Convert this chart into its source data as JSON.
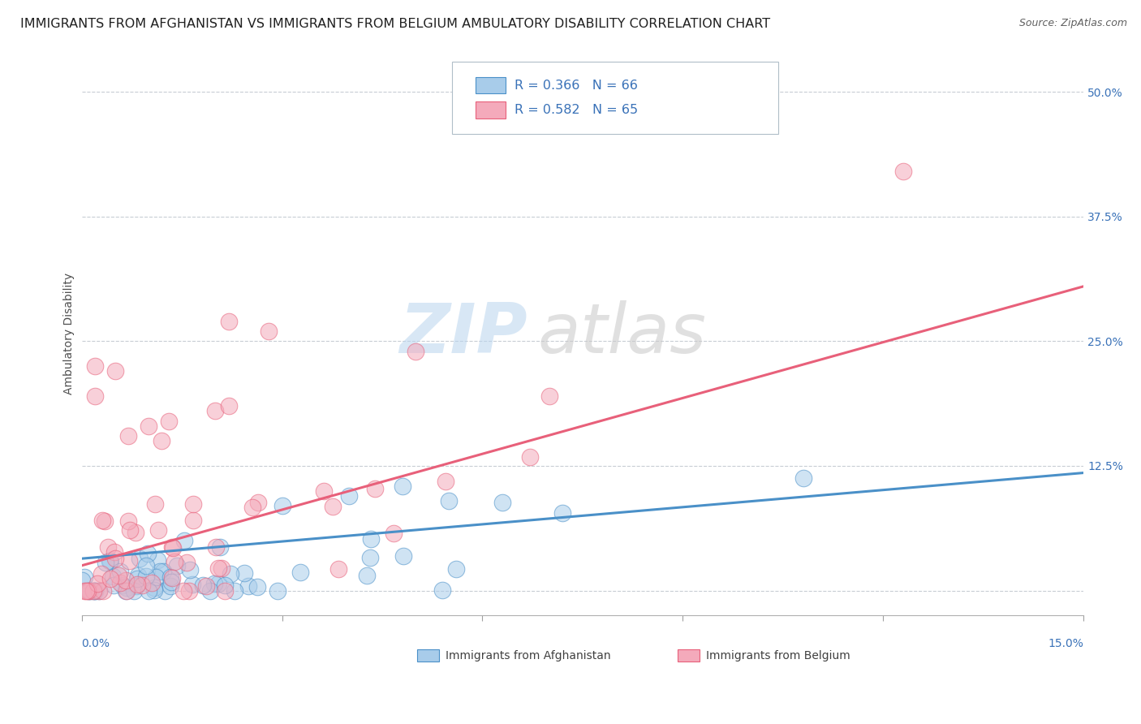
{
  "title": "IMMIGRANTS FROM AFGHANISTAN VS IMMIGRANTS FROM BELGIUM AMBULATORY DISABILITY CORRELATION CHART",
  "source": "Source: ZipAtlas.com",
  "ylabel": "Ambulatory Disability",
  "xlim": [
    0.0,
    0.15
  ],
  "ylim": [
    -0.025,
    0.54
  ],
  "yticks": [
    0.0,
    0.125,
    0.25,
    0.375,
    0.5
  ],
  "ytick_labels": [
    "",
    "12.5%",
    "25.0%",
    "37.5%",
    "50.0%"
  ],
  "xticks": [
    0.0,
    0.03,
    0.06,
    0.09,
    0.12,
    0.15
  ],
  "afghanistan_R": 0.366,
  "afghanistan_N": 66,
  "belgium_R": 0.582,
  "belgium_N": 65,
  "afghanistan_color": "#A8CCEA",
  "belgium_color": "#F4AABB",
  "afghanistan_line_color": "#4A90C8",
  "belgium_line_color": "#E8607A",
  "background_color": "#FFFFFF",
  "watermark_zip": "ZIP",
  "watermark_atlas": "atlas",
  "legend_label_1": "Immigrants from Afghanistan",
  "legend_label_2": "Immigrants from Belgium",
  "title_fontsize": 11.5,
  "source_fontsize": 9,
  "axis_label_fontsize": 10,
  "tick_fontsize": 10,
  "afg_line_x": [
    0.0,
    0.15
  ],
  "afg_line_y": [
    0.032,
    0.118
  ],
  "bel_line_x": [
    0.0,
    0.15
  ],
  "bel_line_y": [
    0.025,
    0.305
  ]
}
